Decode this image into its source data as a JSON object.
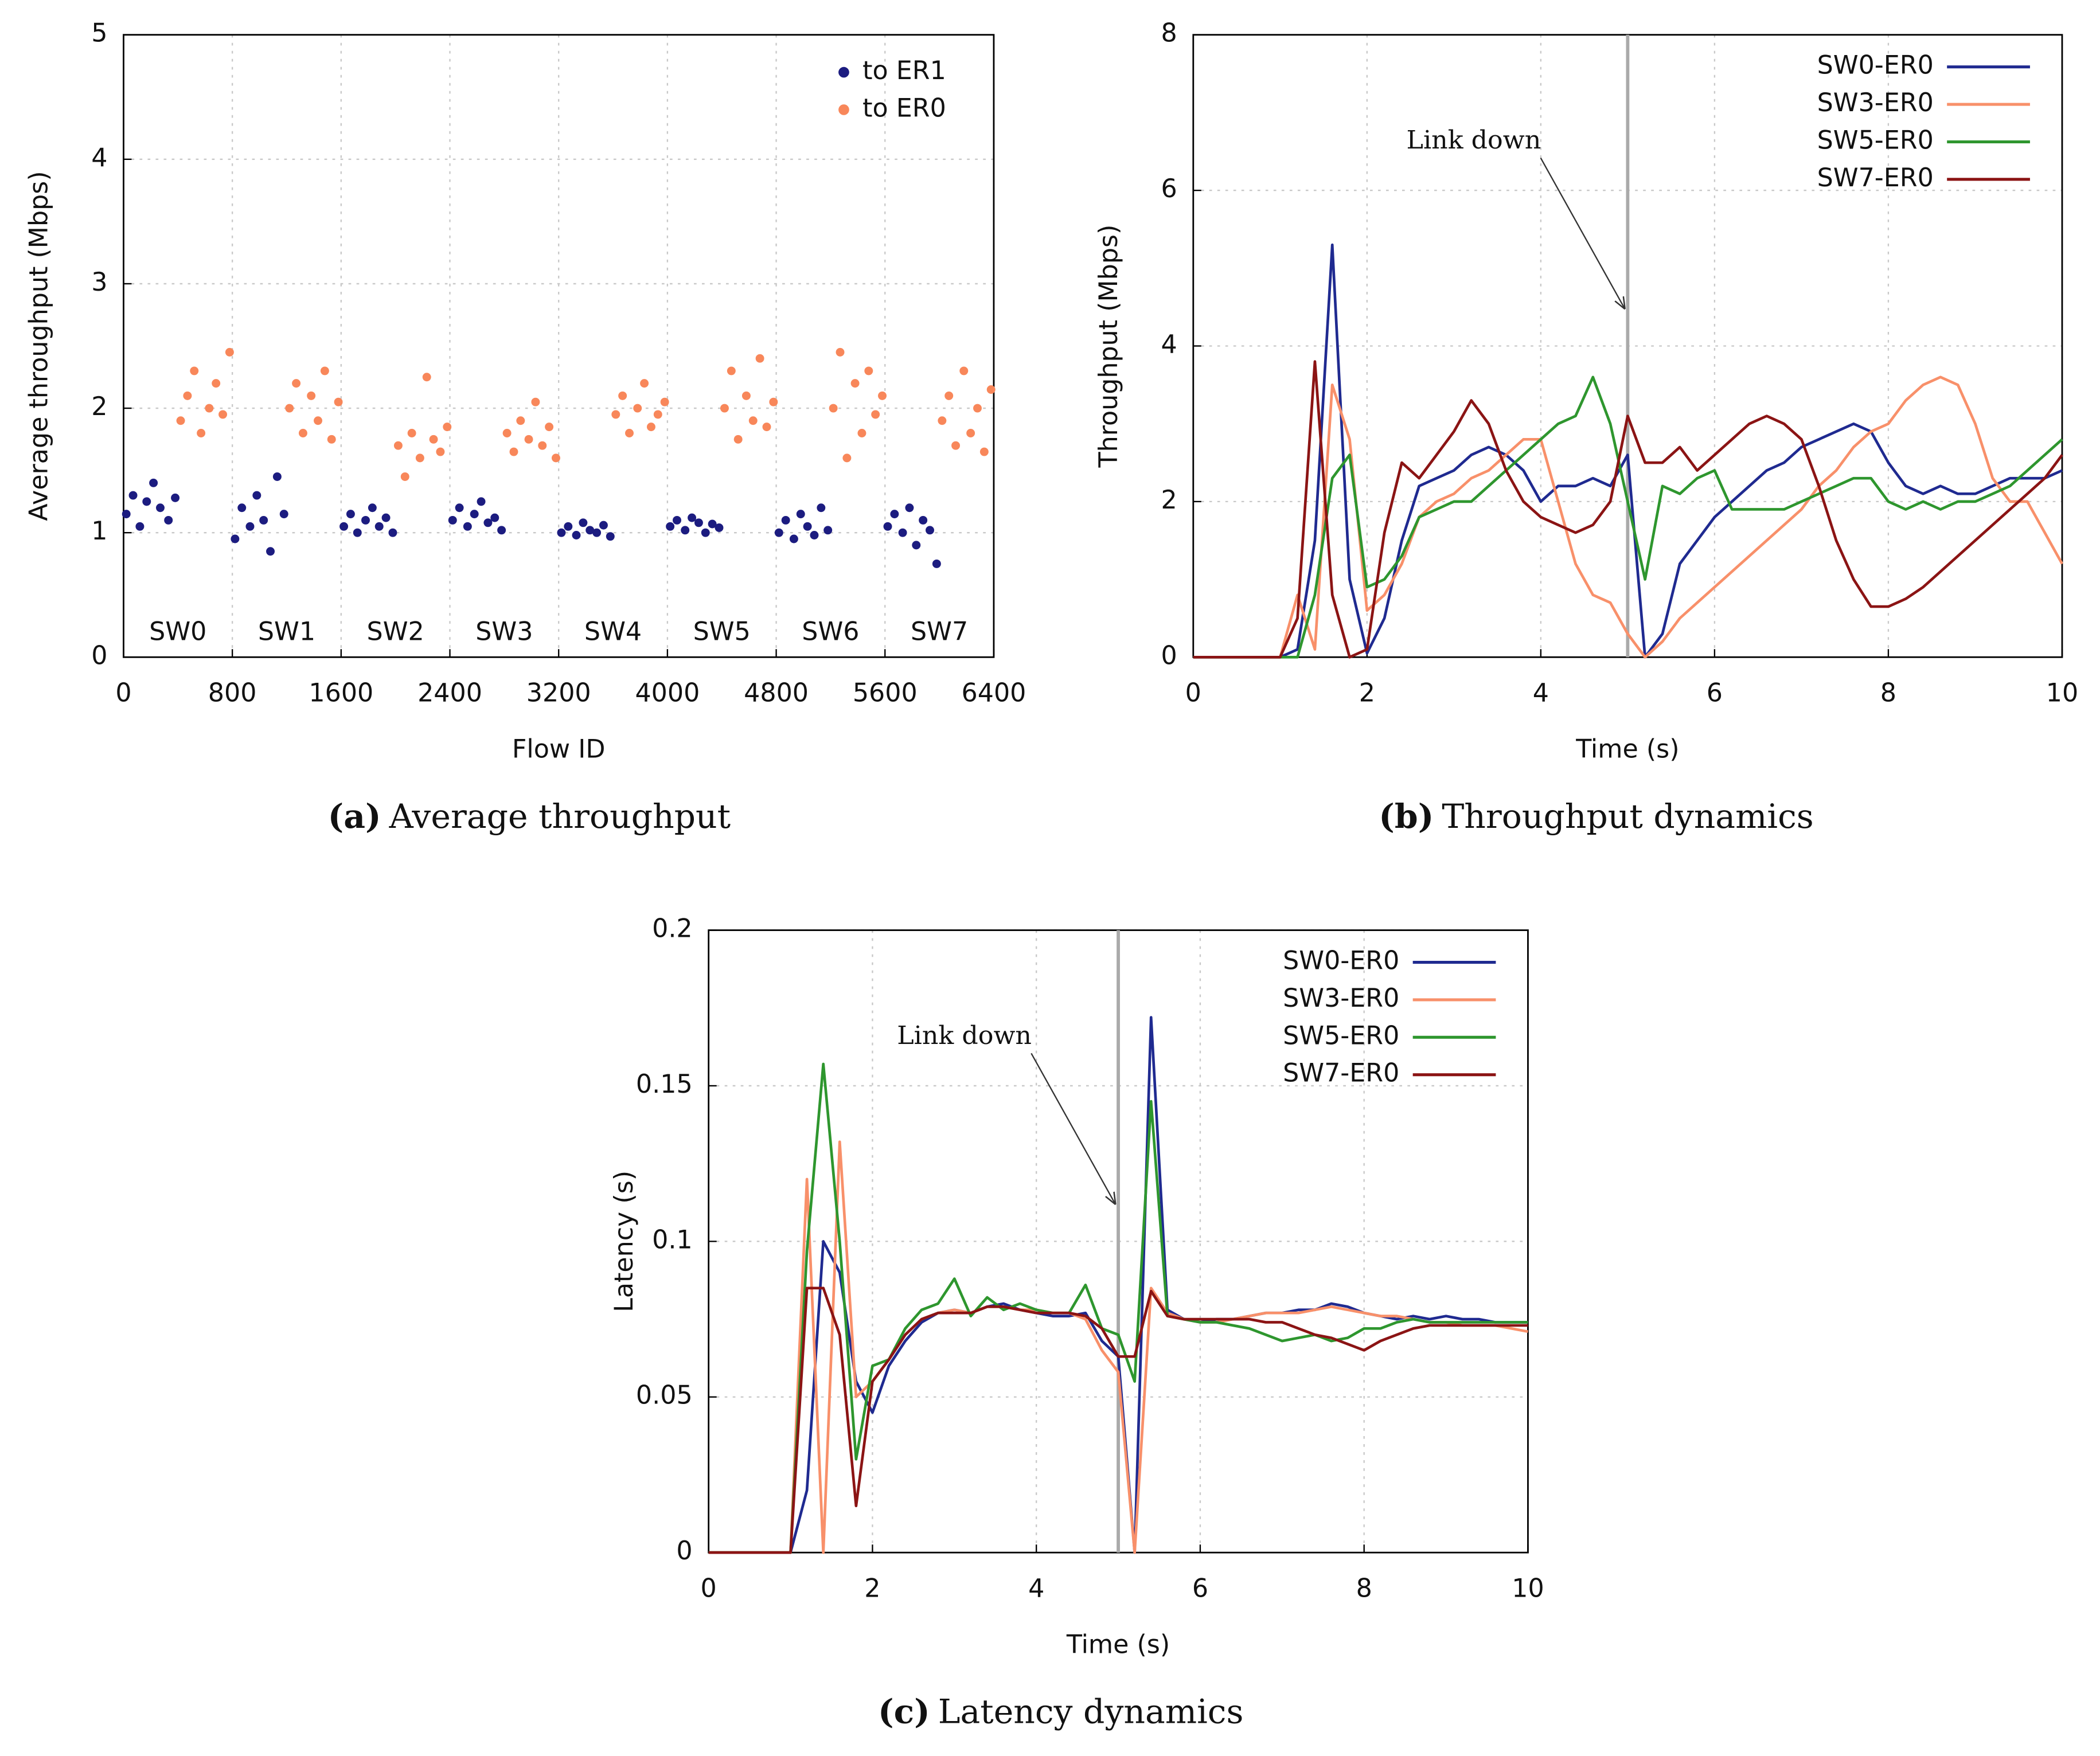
{
  "chart_data": [
    {
      "type": "scatter",
      "xlabel": "Flow ID",
      "ylabel": "Average throughput (Mbps)",
      "caption_label": "(a)",
      "caption": "Average throughput",
      "xlim": [
        0,
        6400
      ],
      "xticks": [
        0,
        800,
        1600,
        2400,
        3200,
        4000,
        4800,
        5600,
        6400
      ],
      "ylim": [
        0,
        5
      ],
      "yticks": [
        0,
        1,
        2,
        3,
        4,
        5
      ],
      "grid": true,
      "legend": "upper right",
      "annotations": [
        {
          "text": "SW0",
          "x": 400
        },
        {
          "text": "SW1",
          "x": 1200
        },
        {
          "text": "SW2",
          "x": 2000
        },
        {
          "text": "SW3",
          "x": 2800
        },
        {
          "text": "SW4",
          "x": 3600
        },
        {
          "text": "SW5",
          "x": 4400
        },
        {
          "text": "SW6",
          "x": 5200
        },
        {
          "text": "SW7",
          "x": 6000
        }
      ],
      "series": [
        {
          "name": "to ER1",
          "color": "#1c1c80",
          "x": [
            20,
            70,
            120,
            170,
            220,
            270,
            330,
            380,
            820,
            870,
            930,
            980,
            1030,
            1080,
            1130,
            1180,
            1620,
            1670,
            1720,
            1780,
            1830,
            1880,
            1930,
            1980,
            2420,
            2470,
            2530,
            2580,
            2630,
            2680,
            2730,
            2780,
            3220,
            3270,
            3330,
            3380,
            3430,
            3480,
            3530,
            3580,
            4020,
            4070,
            4130,
            4180,
            4230,
            4280,
            4330,
            4380,
            4820,
            4870,
            4930,
            4980,
            5030,
            5080,
            5130,
            5180,
            5620,
            5670,
            5730,
            5780,
            5830,
            5880,
            5930,
            5980
          ],
          "values": [
            1.15,
            1.3,
            1.05,
            1.25,
            1.4,
            1.2,
            1.1,
            1.28,
            0.95,
            1.2,
            1.05,
            1.3,
            1.1,
            0.85,
            1.45,
            1.15,
            1.05,
            1.15,
            1.0,
            1.1,
            1.2,
            1.05,
            1.12,
            1.0,
            1.1,
            1.2,
            1.05,
            1.15,
            1.25,
            1.08,
            1.12,
            1.02,
            1.0,
            1.05,
            0.98,
            1.08,
            1.02,
            1.0,
            1.06,
            0.97,
            1.05,
            1.1,
            1.02,
            1.12,
            1.08,
            1.0,
            1.07,
            1.04,
            1.0,
            1.1,
            0.95,
            1.15,
            1.05,
            0.98,
            1.2,
            1.02,
            1.05,
            1.15,
            1.0,
            1.2,
            0.9,
            1.1,
            1.02,
            0.75
          ]
        },
        {
          "name": "to ER0",
          "color": "#f8875a",
          "x": [
            420,
            470,
            520,
            570,
            630,
            680,
            730,
            780,
            1220,
            1270,
            1320,
            1380,
            1430,
            1480,
            1530,
            1580,
            2020,
            2070,
            2120,
            2180,
            2230,
            2280,
            2330,
            2380,
            2820,
            2870,
            2920,
            2980,
            3030,
            3080,
            3130,
            3180,
            3620,
            3670,
            3720,
            3780,
            3830,
            3880,
            3930,
            3980,
            4420,
            4470,
            4520,
            4580,
            4630,
            4680,
            4730,
            4780,
            5220,
            5270,
            5320,
            5380,
            5430,
            5480,
            5530,
            5580,
            6020,
            6070,
            6120,
            6180,
            6230,
            6280,
            6330,
            6380
          ],
          "values": [
            1.9,
            2.1,
            2.3,
            1.8,
            2.0,
            2.2,
            1.95,
            2.45,
            2.0,
            2.2,
            1.8,
            2.1,
            1.9,
            2.3,
            1.75,
            2.05,
            1.7,
            1.45,
            1.8,
            1.6,
            2.25,
            1.75,
            1.65,
            1.85,
            1.8,
            1.65,
            1.9,
            1.75,
            2.05,
            1.7,
            1.85,
            1.6,
            1.95,
            2.1,
            1.8,
            2.0,
            2.2,
            1.85,
            1.95,
            2.05,
            2.0,
            2.3,
            1.75,
            2.1,
            1.9,
            2.4,
            1.85,
            2.05,
            2.0,
            2.45,
            1.6,
            2.2,
            1.8,
            2.3,
            1.95,
            2.1,
            1.9,
            2.1,
            1.7,
            2.3,
            1.8,
            2.0,
            1.65,
            2.15
          ]
        }
      ]
    },
    {
      "type": "line",
      "xlabel": "Time (s)",
      "ylabel": "Throughput (Mbps)",
      "caption_label": "(b)",
      "caption": "Throughput dynamics",
      "xlim": [
        0,
        10
      ],
      "xticks": [
        0,
        2,
        4,
        6,
        8,
        10
      ],
      "ylim": [
        0,
        8
      ],
      "yticks": [
        0,
        2,
        4,
        6,
        8
      ],
      "grid": true,
      "legend": "upper right",
      "annotations": [
        {
          "text": "Link down",
          "x": 5
        }
      ],
      "x": [
        0,
        0.2,
        0.4,
        0.6,
        0.8,
        1,
        1.2,
        1.4,
        1.6,
        1.8,
        2,
        2.2,
        2.4,
        2.6,
        2.8,
        3,
        3.2,
        3.4,
        3.6,
        3.8,
        4,
        4.2,
        4.4,
        4.6,
        4.8,
        5,
        5.2,
        5.4,
        5.6,
        5.8,
        6,
        6.2,
        6.4,
        6.6,
        6.8,
        7,
        7.2,
        7.4,
        7.6,
        7.8,
        8,
        8.2,
        8.4,
        8.6,
        8.8,
        9,
        9.2,
        9.4,
        9.6,
        9.8,
        10
      ],
      "series": [
        {
          "name": "SW0-ER0",
          "color": "#1f2a90",
          "values": [
            0,
            0,
            0,
            0,
            0,
            0,
            0.1,
            1.5,
            5.3,
            1.0,
            0.05,
            0.5,
            1.5,
            2.2,
            2.3,
            2.4,
            2.6,
            2.7,
            2.6,
            2.4,
            2.0,
            2.2,
            2.2,
            2.3,
            2.2,
            2.6,
            0,
            0.3,
            1.2,
            1.5,
            1.8,
            2.0,
            2.2,
            2.4,
            2.5,
            2.7,
            2.8,
            2.9,
            3.0,
            2.9,
            2.5,
            2.2,
            2.1,
            2.2,
            2.1,
            2.1,
            2.2,
            2.3,
            2.3,
            2.3,
            2.4
          ]
        },
        {
          "name": "SW3-ER0",
          "color": "#f8906a",
          "values": [
            0,
            0,
            0,
            0,
            0,
            0,
            0.8,
            0.1,
            3.5,
            2.8,
            0.6,
            0.8,
            1.2,
            1.8,
            2.0,
            2.1,
            2.3,
            2.4,
            2.6,
            2.8,
            2.8,
            2.0,
            1.2,
            0.8,
            0.7,
            0.3,
            0,
            0.2,
            0.5,
            0.7,
            0.9,
            1.1,
            1.3,
            1.5,
            1.7,
            1.9,
            2.2,
            2.4,
            2.7,
            2.9,
            3.0,
            3.3,
            3.5,
            3.6,
            3.5,
            3.0,
            2.3,
            2.0,
            2.0,
            1.6,
            1.2
          ]
        },
        {
          "name": "SW5-ER0",
          "color": "#2e962e",
          "values": [
            0,
            0,
            0,
            0,
            0,
            0,
            0,
            0.8,
            2.3,
            2.6,
            0.9,
            1.0,
            1.3,
            1.8,
            1.9,
            2.0,
            2.0,
            2.2,
            2.4,
            2.6,
            2.8,
            3.0,
            3.1,
            3.6,
            3.0,
            2.0,
            1.0,
            2.2,
            2.1,
            2.3,
            2.4,
            1.9,
            1.9,
            1.9,
            1.9,
            2.0,
            2.1,
            2.2,
            2.3,
            2.3,
            2.0,
            1.9,
            2.0,
            1.9,
            2.0,
            2.0,
            2.1,
            2.2,
            2.4,
            2.6,
            2.8
          ]
        },
        {
          "name": "SW7-ER0",
          "color": "#8b1414",
          "values": [
            0,
            0,
            0,
            0,
            0,
            0,
            0.5,
            3.8,
            0.8,
            0,
            0.1,
            1.6,
            2.5,
            2.3,
            2.6,
            2.9,
            3.3,
            3.0,
            2.4,
            2.0,
            1.8,
            1.7,
            1.6,
            1.7,
            2.0,
            3.1,
            2.5,
            2.5,
            2.7,
            2.4,
            2.6,
            2.8,
            3.0,
            3.1,
            3.0,
            2.8,
            2.2,
            1.5,
            1.0,
            0.65,
            0.65,
            0.75,
            0.9,
            1.1,
            1.3,
            1.5,
            1.7,
            1.9,
            2.1,
            2.3,
            2.6
          ]
        }
      ]
    },
    {
      "type": "line",
      "xlabel": "Time (s)",
      "ylabel": "Latency (s)",
      "caption_label": "(c)",
      "caption": "Latency dynamics",
      "xlim": [
        0,
        10
      ],
      "xticks": [
        0,
        2,
        4,
        6,
        8,
        10
      ],
      "ylim": [
        0,
        0.2
      ],
      "yticks": [
        0,
        0.05,
        0.1,
        0.15,
        0.2
      ],
      "grid": true,
      "legend": "upper right",
      "annotations": [
        {
          "text": "Link down",
          "x": 5
        }
      ],
      "x": [
        0,
        0.2,
        0.4,
        0.6,
        0.8,
        1,
        1.2,
        1.4,
        1.6,
        1.8,
        2,
        2.2,
        2.4,
        2.6,
        2.8,
        3,
        3.2,
        3.4,
        3.6,
        3.8,
        4,
        4.2,
        4.4,
        4.6,
        4.8,
        5,
        5.2,
        5.4,
        5.6,
        5.8,
        6,
        6.2,
        6.4,
        6.6,
        6.8,
        7,
        7.2,
        7.4,
        7.6,
        7.8,
        8,
        8.2,
        8.4,
        8.6,
        8.8,
        9,
        9.2,
        9.4,
        9.6,
        9.8,
        10
      ],
      "series": [
        {
          "name": "SW0-ER0",
          "color": "#1f2a90",
          "values": [
            0,
            0,
            0,
            0,
            0,
            0,
            0.02,
            0.1,
            0.09,
            0.055,
            0.045,
            0.06,
            0.068,
            0.074,
            0.077,
            0.078,
            0.077,
            0.079,
            0.08,
            0.078,
            0.077,
            0.076,
            0.076,
            0.077,
            0.068,
            0.063,
            0,
            0.172,
            0.078,
            0.075,
            0.074,
            0.075,
            0.075,
            0.076,
            0.077,
            0.077,
            0.078,
            0.078,
            0.08,
            0.079,
            0.077,
            0.076,
            0.075,
            0.076,
            0.075,
            0.076,
            0.075,
            0.075,
            0.074,
            0.074,
            0.074
          ]
        },
        {
          "name": "SW3-ER0",
          "color": "#f8906a",
          "values": [
            0,
            0,
            0,
            0,
            0,
            0,
            0.12,
            0,
            0.132,
            0.05,
            0.055,
            0.062,
            0.07,
            0.075,
            0.077,
            0.078,
            0.077,
            0.079,
            0.079,
            0.078,
            0.078,
            0.077,
            0.077,
            0.075,
            0.065,
            0.058,
            0,
            0.085,
            0.077,
            0.075,
            0.074,
            0.074,
            0.075,
            0.076,
            0.077,
            0.077,
            0.077,
            0.078,
            0.079,
            0.078,
            0.077,
            0.076,
            0.076,
            0.075,
            0.074,
            0.074,
            0.073,
            0.073,
            0.073,
            0.072,
            0.071
          ]
        },
        {
          "name": "SW5-ER0",
          "color": "#2e962e",
          "values": [
            0,
            0,
            0,
            0,
            0,
            0,
            0.097,
            0.157,
            0.1,
            0.03,
            0.06,
            0.062,
            0.072,
            0.078,
            0.08,
            0.088,
            0.076,
            0.082,
            0.078,
            0.08,
            0.078,
            0.077,
            0.077,
            0.086,
            0.072,
            0.07,
            0.055,
            0.145,
            0.076,
            0.075,
            0.074,
            0.074,
            0.073,
            0.072,
            0.07,
            0.068,
            0.069,
            0.07,
            0.068,
            0.069,
            0.072,
            0.072,
            0.074,
            0.075,
            0.074,
            0.074,
            0.074,
            0.074,
            0.074,
            0.074,
            0.074
          ]
        },
        {
          "name": "SW7-ER0",
          "color": "#8b1414",
          "values": [
            0,
            0,
            0,
            0,
            0,
            0,
            0.085,
            0.085,
            0.07,
            0.015,
            0.055,
            0.062,
            0.07,
            0.075,
            0.077,
            0.077,
            0.077,
            0.079,
            0.079,
            0.078,
            0.077,
            0.077,
            0.077,
            0.076,
            0.072,
            0.063,
            0.063,
            0.084,
            0.076,
            0.075,
            0.075,
            0.075,
            0.075,
            0.075,
            0.074,
            0.074,
            0.072,
            0.07,
            0.069,
            0.067,
            0.065,
            0.068,
            0.07,
            0.072,
            0.073,
            0.073,
            0.073,
            0.073,
            0.073,
            0.073,
            0.073
          ]
        }
      ]
    }
  ]
}
